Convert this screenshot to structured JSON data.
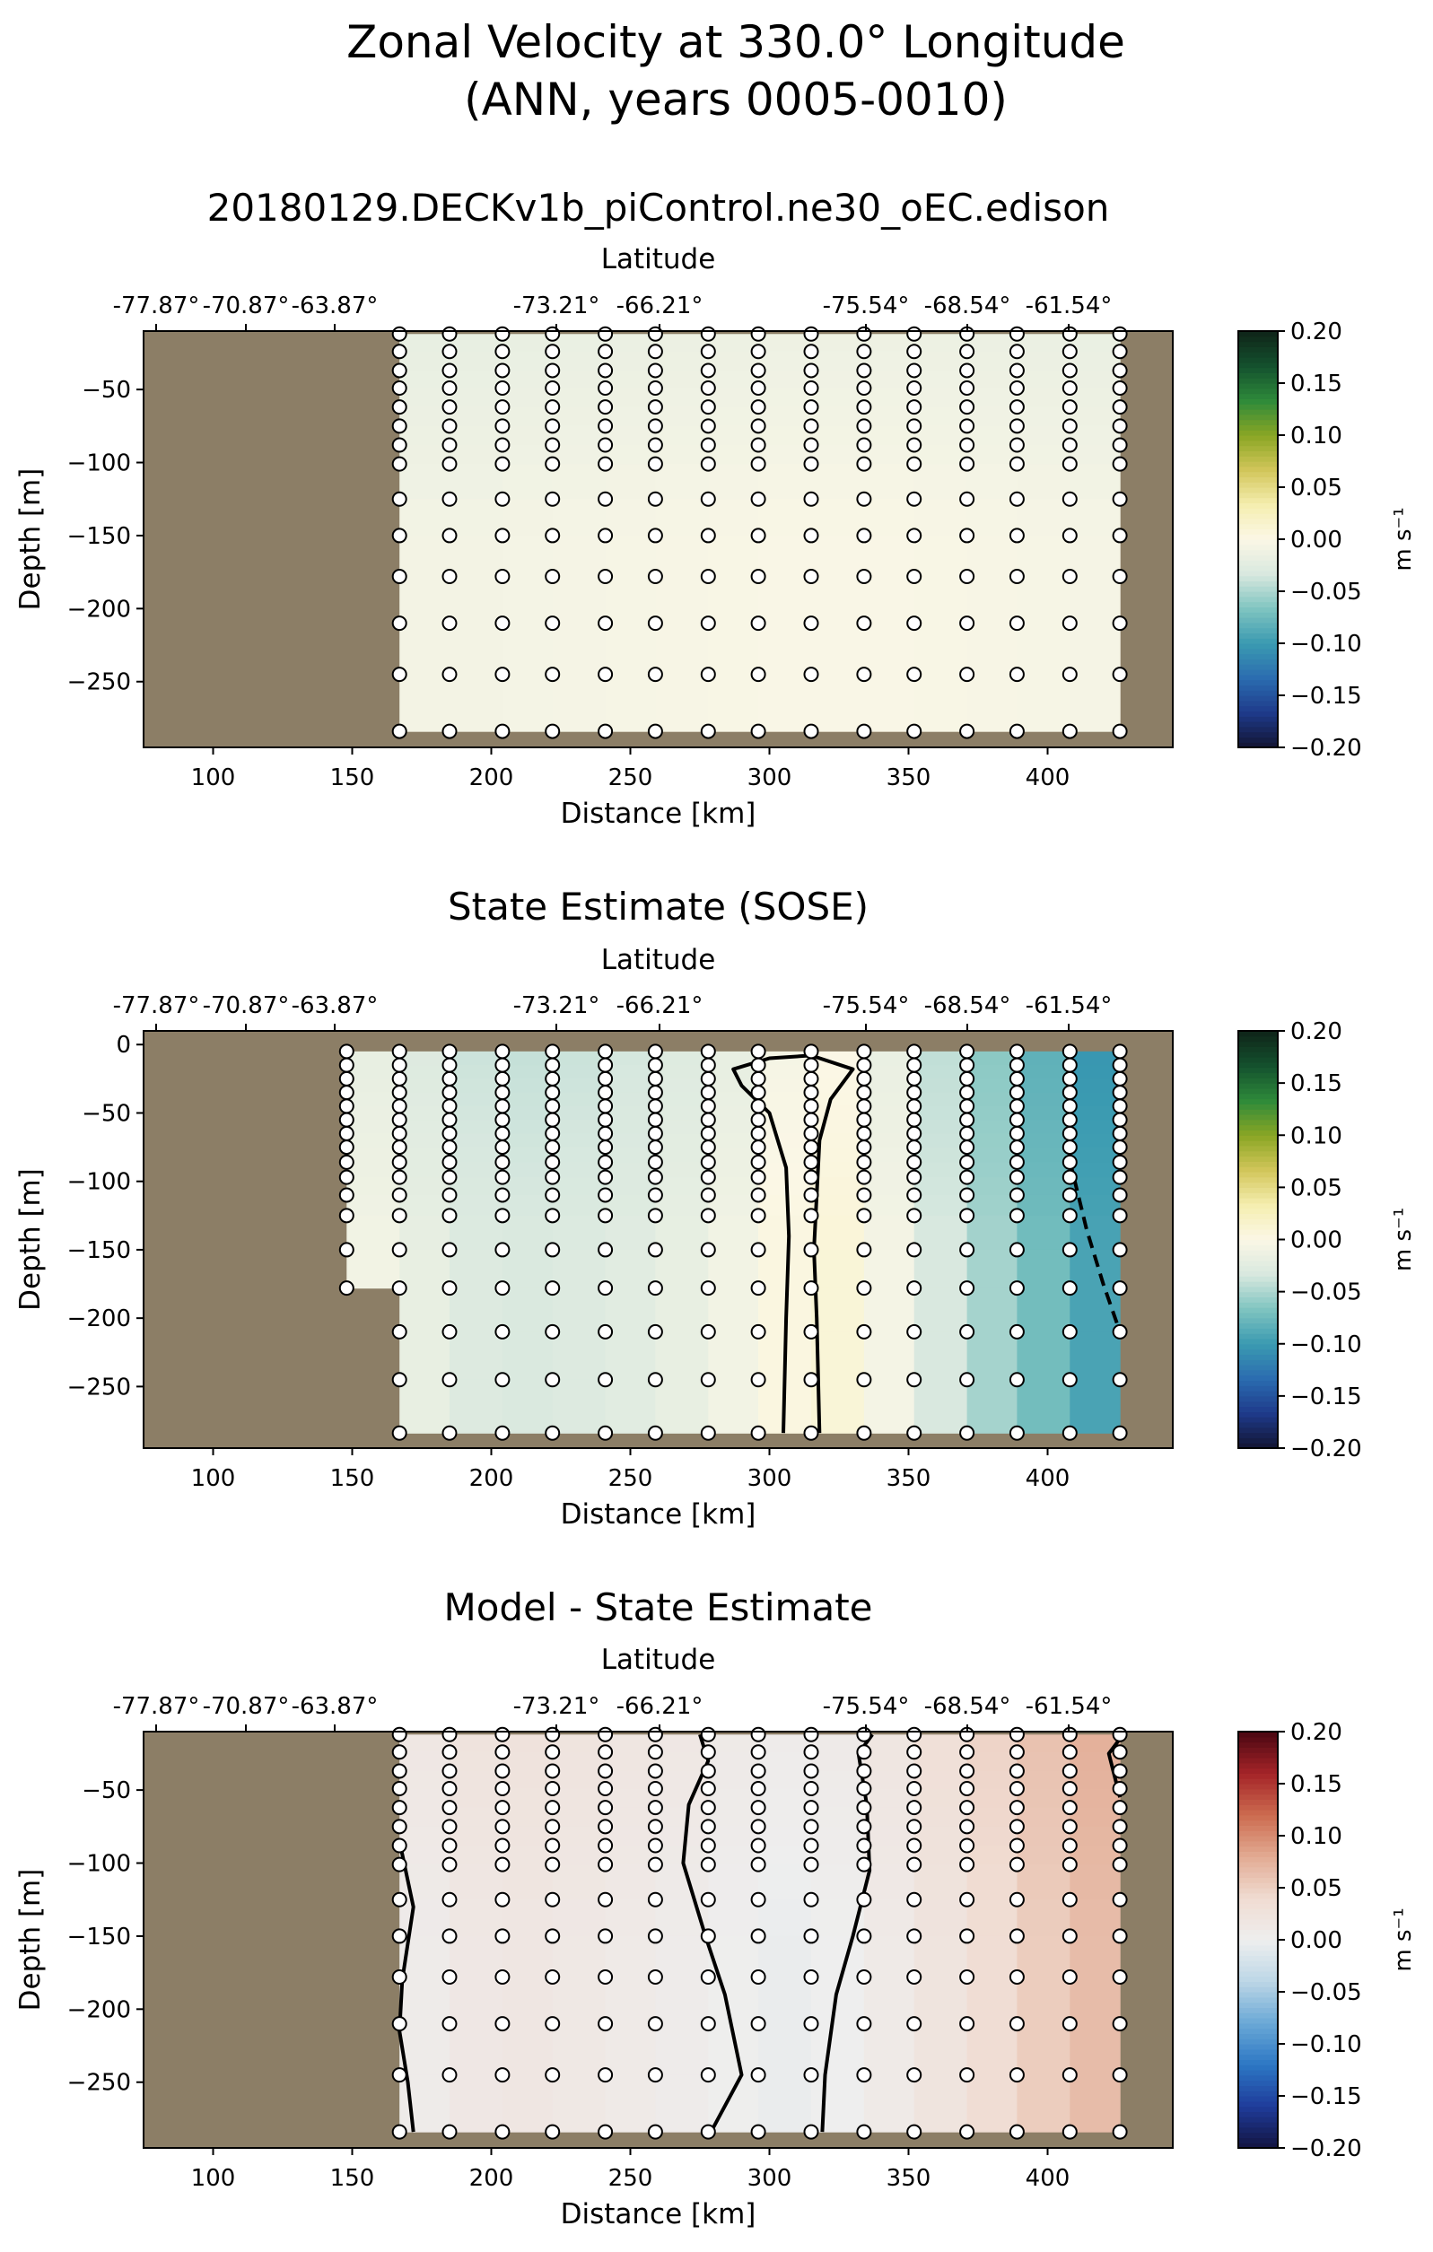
{
  "figure": {
    "title_line1": "Zonal Velocity at 330.0° Longitude",
    "title_line2": "(ANN, years 0005-0010)"
  },
  "colors": {
    "land": "#8C7E66",
    "velocity_cmap": [
      "#131432",
      "#1e3a8a",
      "#2b6cb0",
      "#3a9ab1",
      "#7fc4c0",
      "#d8e8df",
      "#fbf7e6",
      "#f5eeb0",
      "#d2c65a",
      "#8aa624",
      "#2e8a3a",
      "#14512e",
      "#0f2418"
    ],
    "diff_cmap": [
      "#131440",
      "#1f3b9a",
      "#2c77c4",
      "#6aa8d6",
      "#bcd6e6",
      "#eeeeee",
      "#f0dcd2",
      "#e2ab93",
      "#cc6b4f",
      "#a52428",
      "#4a0712"
    ]
  },
  "chart_data": [
    {
      "type": "heatmap",
      "title": "20180129.DECKv1b_piControl.ne30_oEC.edison",
      "xlabel": "Distance [km]",
      "ylabel": "Depth [m]",
      "top_axis_label": "Latitude",
      "top_ticks": [
        "-77.87°",
        "-70.87°",
        "-63.87°",
        "-73.21°",
        "-66.21°",
        "-75.54°",
        "-68.54°",
        "-61.54°"
      ],
      "xlim": [
        75,
        445
      ],
      "ylim": [
        -295,
        -10
      ],
      "xticks": [
        100,
        150,
        200,
        250,
        300,
        350,
        400
      ],
      "yticks": [
        -50,
        -100,
        -150,
        -200,
        -250
      ],
      "colorbar": {
        "label": "m s⁻¹",
        "min": -0.2,
        "max": 0.2,
        "ticks": [
          "0.20",
          "0.15",
          "0.10",
          "0.05",
          "0.00",
          "−0.05",
          "−0.10",
          "−0.15",
          "−0.20"
        ],
        "cmap": "velocity"
      },
      "station_distances_km": [
        167,
        185,
        204,
        222,
        241,
        259,
        278,
        296,
        315,
        334,
        352,
        371,
        389,
        408,
        426
      ],
      "levels_depth_m": [
        -12,
        -24,
        -37,
        -49,
        -62,
        -75,
        -88,
        -101,
        -125,
        -150,
        -178,
        -210,
        -245,
        -284
      ],
      "ocean_top_m": -12,
      "column_velocity_ms": [
        -0.008,
        -0.008,
        -0.008,
        -0.006,
        -0.006,
        -0.004,
        -0.004,
        -0.002,
        -0.002,
        -0.002,
        -0.002,
        -0.004,
        -0.004,
        -0.006,
        -0.006
      ],
      "shallow_adjust_ms": -0.012,
      "contours": []
    },
    {
      "type": "heatmap",
      "title": "State Estimate (SOSE)",
      "xlabel": "Distance [km]",
      "ylabel": "Depth [m]",
      "top_axis_label": "Latitude",
      "top_ticks": [
        "-77.87°",
        "-70.87°",
        "-63.87°",
        "-73.21°",
        "-66.21°",
        "-75.54°",
        "-68.54°",
        "-61.54°"
      ],
      "xlim": [
        75,
        445
      ],
      "ylim": [
        -295,
        10
      ],
      "xticks": [
        100,
        150,
        200,
        250,
        300,
        350,
        400
      ],
      "yticks": [
        0,
        -50,
        -100,
        -150,
        -200,
        -250
      ],
      "colorbar": {
        "label": "m s⁻¹",
        "min": -0.2,
        "max": 0.2,
        "ticks": [
          "0.20",
          "0.15",
          "0.10",
          "0.05",
          "0.00",
          "−0.05",
          "−0.10",
          "−0.15",
          "−0.20"
        ],
        "cmap": "velocity"
      },
      "station_distances_km": [
        148,
        167,
        185,
        204,
        222,
        241,
        259,
        278,
        296,
        315,
        334,
        352,
        371,
        389,
        408,
        426
      ],
      "station_max_depth_m": [
        -178,
        -284,
        -284,
        -284,
        -284,
        -284,
        -284,
        -284,
        -284,
        -284,
        -284,
        -284,
        -284,
        -284,
        -284,
        -284
      ],
      "levels_depth_m": [
        -5,
        -15,
        -25,
        -35,
        -45,
        -55,
        -65,
        -75,
        -86,
        -97,
        -110,
        -125,
        -150,
        -178,
        -210,
        -245,
        -284
      ],
      "ocean_top_m": -5,
      "column_velocity_ms": [
        -0.006,
        -0.012,
        -0.025,
        -0.032,
        -0.03,
        -0.028,
        -0.022,
        -0.014,
        -0.004,
        0.012,
        0.006,
        -0.02,
        -0.045,
        -0.06,
        -0.085,
        -0.1
      ],
      "shallow_adjust_ms": -0.01,
      "contours": [
        {
          "style": "solid",
          "points": [
            [
              305,
              -284
            ],
            [
              306,
              -200
            ],
            [
              307,
              -140
            ],
            [
              306,
              -90
            ],
            [
              300,
              -50
            ],
            [
              290,
              -30
            ],
            [
              287,
              -18
            ],
            [
              300,
              -10
            ],
            [
              315,
              -8
            ],
            [
              330,
              -18
            ],
            [
              322,
              -40
            ],
            [
              318,
              -70
            ],
            [
              317,
              -110
            ],
            [
              316,
              -150
            ],
            [
              317,
              -200
            ],
            [
              318,
              -284
            ]
          ]
        },
        {
          "style": "dashed",
          "points": [
            [
              408,
              -55
            ],
            [
              408,
              -85
            ],
            [
              414,
              -135
            ],
            [
              420,
              -175
            ],
            [
              426,
              -210
            ]
          ]
        }
      ]
    },
    {
      "type": "heatmap",
      "title": "Model - State Estimate",
      "xlabel": "Distance [km]",
      "ylabel": "Depth [m]",
      "top_axis_label": "Latitude",
      "top_ticks": [
        "-77.87°",
        "-70.87°",
        "-63.87°",
        "-73.21°",
        "-66.21°",
        "-75.54°",
        "-68.54°",
        "-61.54°"
      ],
      "xlim": [
        75,
        445
      ],
      "ylim": [
        -295,
        -10
      ],
      "xticks": [
        100,
        150,
        200,
        250,
        300,
        350,
        400
      ],
      "yticks": [
        -50,
        -100,
        -150,
        -200,
        -250
      ],
      "colorbar": {
        "label": "m s⁻¹",
        "min": -0.2,
        "max": 0.2,
        "ticks": [
          "0.20",
          "0.15",
          "0.10",
          "0.05",
          "0.00",
          "−0.05",
          "−0.10",
          "−0.15",
          "−0.20"
        ],
        "cmap": "diff"
      },
      "station_distances_km": [
        167,
        185,
        204,
        222,
        241,
        259,
        278,
        296,
        315,
        334,
        352,
        371,
        389,
        408,
        426
      ],
      "levels_depth_m": [
        -12,
        -24,
        -37,
        -49,
        -62,
        -75,
        -88,
        -101,
        -125,
        -150,
        -178,
        -210,
        -245,
        -284
      ],
      "ocean_top_m": -12,
      "column_velocity_ms": [
        0.002,
        0.012,
        0.018,
        0.016,
        0.012,
        0.008,
        0.004,
        -0.002,
        -0.004,
        0.004,
        0.016,
        0.03,
        0.045,
        0.06,
        0.072
      ],
      "shallow_adjust_ms": 0.01,
      "contours": [
        {
          "style": "solid",
          "points": [
            [
              167,
              -85
            ],
            [
              172,
              -130
            ],
            [
              168,
              -180
            ],
            [
              167,
              -215
            ],
            [
              170,
              -250
            ],
            [
              172,
              -284
            ]
          ]
        },
        {
          "style": "solid",
          "points": [
            [
              275,
              -12
            ],
            [
              278,
              -30
            ],
            [
              271,
              -60
            ],
            [
              269,
              -100
            ],
            [
              277,
              -150
            ],
            [
              284,
              -190
            ],
            [
              290,
              -245
            ],
            [
              279,
              -284
            ]
          ]
        },
        {
          "style": "solid",
          "points": [
            [
              337,
              -12
            ],
            [
              332,
              -25
            ],
            [
              335,
              -60
            ],
            [
              336,
              -105
            ],
            [
              330,
              -150
            ],
            [
              324,
              -190
            ],
            [
              320,
              -245
            ],
            [
              319,
              -284
            ]
          ]
        },
        {
          "style": "solid",
          "points": [
            [
              426,
              -15
            ],
            [
              422,
              -25
            ],
            [
              424,
              -40
            ],
            [
              426,
              -55
            ]
          ]
        }
      ]
    }
  ]
}
